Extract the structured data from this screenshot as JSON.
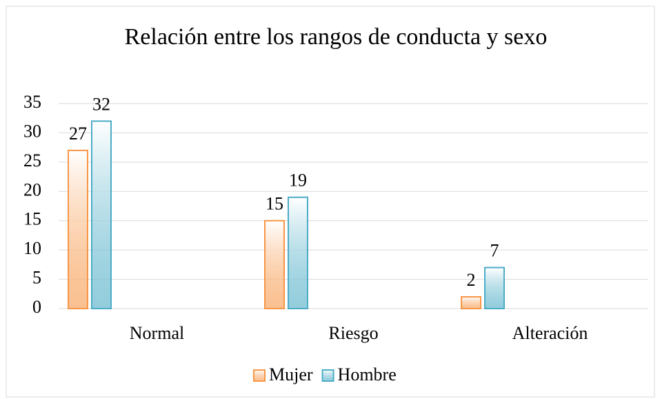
{
  "chart_data": {
    "type": "bar",
    "title": "Relación entre los rangos de conducta y sexo",
    "categories": [
      "Normal",
      "Riesgo",
      "Alteración"
    ],
    "series": [
      {
        "name": "Mujer",
        "color": "#f79646",
        "values": [
          27,
          15,
          2
        ]
      },
      {
        "name": "Hombre",
        "color": "#4bacc6",
        "values": [
          32,
          19,
          7
        ]
      }
    ],
    "ylim": [
      0,
      35
    ],
    "yticks": [
      0,
      5,
      10,
      15,
      20,
      25,
      30,
      35
    ],
    "grid": true,
    "legend": "bottom"
  }
}
